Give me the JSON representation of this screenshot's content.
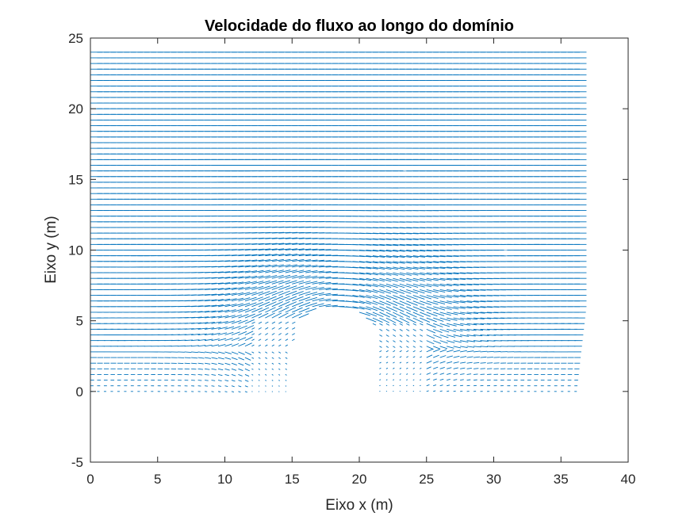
{
  "chart_data": {
    "type": "quiver",
    "title": "Velocidade do fluxo ao longo do domínio",
    "xlabel": "Eixo x (m)",
    "ylabel": "Eixo y (m)",
    "xlim": [
      0,
      40
    ],
    "ylim": [
      -5,
      25
    ],
    "xticks": [
      "0",
      "5",
      "10",
      "15",
      "20",
      "25",
      "30",
      "35",
      "40"
    ],
    "yticks": [
      "-5",
      "0",
      "5",
      "10",
      "15",
      "20",
      "25"
    ],
    "grid": false,
    "box": true,
    "arrow_color": "#0072BD",
    "field": {
      "x_range": [
        0,
        36
      ],
      "y_range": [
        0,
        24
      ],
      "dx": 0.5,
      "dy": 0.4,
      "free_stream_direction": "+x",
      "obstacle": {
        "shape": "arched-rectangle",
        "x_left": 15,
        "x_right": 21.3,
        "y_bottom": 0,
        "y_top": 6,
        "arch_start_y": 3.5
      }
    }
  }
}
